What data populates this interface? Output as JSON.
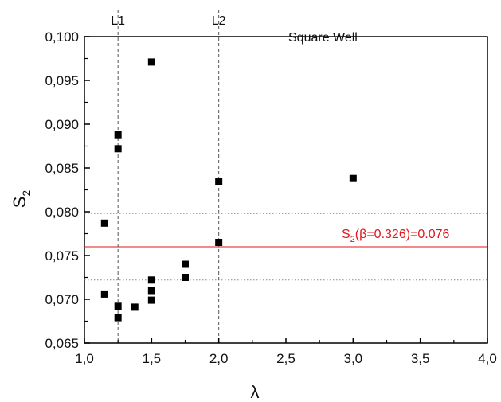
{
  "chart_data": {
    "type": "scatter",
    "title": "",
    "xlabel": "λ",
    "ylabel": "S",
    "ylabel_subscript": "2",
    "xlim": [
      1.0,
      4.0
    ],
    "ylim": [
      0.065,
      0.1
    ],
    "xticks": [
      1.0,
      1.5,
      2.0,
      2.5,
      3.0,
      3.5,
      4.0
    ],
    "xtick_labels": [
      "1,0",
      "1,5",
      "2,0",
      "2,5",
      "3,0",
      "3,5",
      "4,0"
    ],
    "yticks": [
      0.065,
      0.07,
      0.075,
      0.08,
      0.085,
      0.09,
      0.095,
      0.1
    ],
    "ytick_labels": [
      "0,065",
      "0,070",
      "0,075",
      "0,080",
      "0,085",
      "0,090",
      "0,095",
      "0,100"
    ],
    "grid": false,
    "legend": "none",
    "marker": "square",
    "marker_color": "#000000",
    "series": [
      {
        "points": [
          {
            "x": 1.15,
            "y": 0.0787
          },
          {
            "x": 1.15,
            "y": 0.0706
          },
          {
            "x": 1.25,
            "y": 0.0888
          },
          {
            "x": 1.25,
            "y": 0.0872
          },
          {
            "x": 1.25,
            "y": 0.0692
          },
          {
            "x": 1.25,
            "y": 0.0679
          },
          {
            "x": 1.375,
            "y": 0.0691
          },
          {
            "x": 1.5,
            "y": 0.0971
          },
          {
            "x": 1.5,
            "y": 0.0722
          },
          {
            "x": 1.5,
            "y": 0.071
          },
          {
            "x": 1.5,
            "y": 0.0699
          },
          {
            "x": 1.75,
            "y": 0.074
          },
          {
            "x": 1.75,
            "y": 0.0725
          },
          {
            "x": 2.0,
            "y": 0.0835
          },
          {
            "x": 2.0,
            "y": 0.0765
          },
          {
            "x": 3.0,
            "y": 0.0838
          }
        ]
      }
    ],
    "vertical_lines": [
      {
        "x": 1.25,
        "label": "L1",
        "style": "dashed",
        "color": "#555555"
      },
      {
        "x": 2.0,
        "label": "L2",
        "style": "dashed",
        "color": "#555555"
      }
    ],
    "horizontal_lines": [
      {
        "y": 0.0798,
        "style": "dotted",
        "color": "#888888"
      },
      {
        "y": 0.076,
        "style": "solid",
        "color": "#e0161a"
      },
      {
        "y": 0.0722,
        "style": "dotted",
        "color": "#888888"
      }
    ],
    "annotations": {
      "well_label": "Square Well",
      "ref_prefix": "S",
      "ref_subscript": "2",
      "ref_suffix": "(β=0.326)=0.076",
      "ref_color": "#e0161a"
    }
  }
}
